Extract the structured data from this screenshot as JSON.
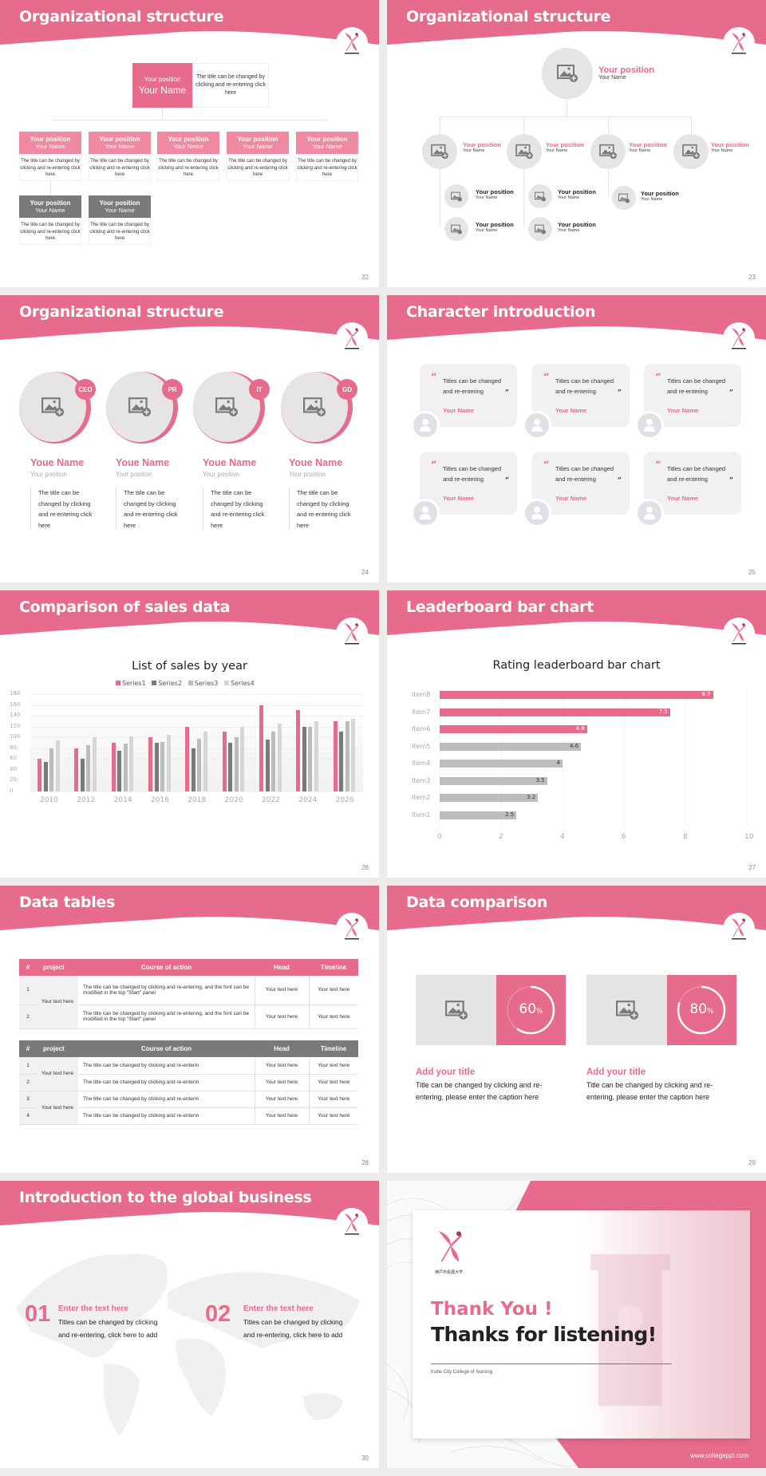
{
  "brand": {
    "accent": "#e76b8c",
    "gray_dark": "#7a7a7a",
    "gray_mid": "#bcbcbc",
    "gray_light": "#d6d6d6"
  },
  "slides": {
    "s22": {
      "title": "Organizational structure",
      "page": "22",
      "top": {
        "position": "Your position",
        "name": "Your Name",
        "desc": "The title can be changed by clicking and re-entering click here"
      },
      "cards": [
        {
          "position": "Your position",
          "name": "Your Name",
          "desc": "The title can be changed by clicking and re-entering click here",
          "color": "pink"
        },
        {
          "position": "Your position",
          "name": "Your Name",
          "desc": "The title can be changed by clicking and re-entering click here",
          "color": "pink"
        },
        {
          "position": "Your position",
          "name": "Your Name",
          "desc": "The title can be changed by clicking and re-entering click here",
          "color": "pink"
        },
        {
          "position": "Your position",
          "name": "Your Name",
          "desc": "The title can be changed by clicking and re-entering click here",
          "color": "pink"
        },
        {
          "position": "Your position",
          "name": "Your Name",
          "desc": "The title can be changed by clicking and re-entering click here",
          "color": "pink"
        },
        {
          "position": "Your position",
          "name": "Your Name",
          "desc": "The title can be changed by clicking and re-entering click here",
          "color": "gray"
        },
        {
          "position": "Your position",
          "name": "Your Name",
          "desc": "The title can be changed by clicking and re-entering click here",
          "color": "gray"
        }
      ]
    },
    "s23": {
      "title": "Organizational structure",
      "page": "23",
      "top": {
        "position": "Your position",
        "name": "Your Name"
      },
      "level2": [
        {
          "position": "Your position",
          "name": "Your Name"
        },
        {
          "position": "Your position",
          "name": "Your Name"
        },
        {
          "position": "Your position",
          "name": "Your Name"
        },
        {
          "position": "Your position",
          "name": "Your Name"
        }
      ],
      "level3": [
        {
          "position": "Your position",
          "name": "Your Name"
        },
        {
          "position": "Your position",
          "name": "Your Name"
        },
        {
          "position": "Your position",
          "name": "Your Name"
        },
        {
          "position": "Your position",
          "name": "Your Name"
        },
        {
          "position": "Your position",
          "name": "Your Name"
        }
      ]
    },
    "s24": {
      "title": "Organizational structure",
      "page": "24",
      "people": [
        {
          "badge": "CEO",
          "name": "Youe Name",
          "position": "Your position",
          "desc": "The title can be changed by clicking and re-entering click here"
        },
        {
          "badge": "PR",
          "name": "Youe Name",
          "position": "Your position",
          "desc": "The title can be changed by clicking and re-entering click here"
        },
        {
          "badge": "IT",
          "name": "Youe Name",
          "position": "Your position",
          "desc": "The title can be changed by clicking and re-entering click here"
        },
        {
          "badge": "GD",
          "name": "Youe Name",
          "position": "Your position",
          "desc": "The title can be changed by clicking and re-entering click here"
        }
      ]
    },
    "s25": {
      "title": "Character introduction",
      "page": "25",
      "quotes": [
        {
          "text": "Titles can be changed and re-entering",
          "name": "Your Name"
        },
        {
          "text": "Titles can be changed and re-entering",
          "name": "Your Name"
        },
        {
          "text": "Titles can be changed and re-entering",
          "name": "Your Name"
        },
        {
          "text": "Titles can be changed and re-entering",
          "name": "Your Name"
        },
        {
          "text": "Titles can be changed and re-entering",
          "name": "Your Name"
        },
        {
          "text": "Titles can be changed and re-entering",
          "name": "Your Name"
        }
      ],
      "open_quote": "“",
      "close_quote": "”"
    },
    "s26": {
      "title": "Comparison of sales data",
      "page": "26"
    },
    "s27": {
      "title": "Leaderboard bar chart",
      "page": "27"
    },
    "s28": {
      "title": "Data tables",
      "page": "28",
      "headers": [
        "#",
        "project",
        "Course of action",
        "Head",
        "Timeline"
      ],
      "table1": {
        "project": "Your text here",
        "rows": [
          {
            "num": "1",
            "action": "The title can be changed by clicking and re-entering, and the font can be modified in the top \"Start\" panel",
            "head": "Your text here",
            "timeline": "Your text here"
          },
          {
            "num": "2",
            "action": "The title can be changed by clicking and re-entering, and the font can be modified in the top \"Start\" panel",
            "head": "Your text here",
            "timeline": "Your text here"
          }
        ]
      },
      "table2": {
        "projects": [
          "Your text here",
          "Your text here"
        ],
        "rows": [
          {
            "num": "1",
            "action": "The title can be changed by clicking and re-enterin",
            "head": "Your text here",
            "timeline": "Your text here"
          },
          {
            "num": "2",
            "action": "The title can be changed by clicking and re-enterin",
            "head": "Your text here",
            "timeline": "Your text here"
          },
          {
            "num": "3",
            "action": "The title can be changed by clicking and re-enterin",
            "head": "Your text here",
            "timeline": "Your text here"
          },
          {
            "num": "4",
            "action": "The title can be changed by clicking and re-enterin",
            "head": "Your text here",
            "timeline": "Your text here"
          }
        ]
      }
    },
    "s29": {
      "title": "Data comparison",
      "page": "29",
      "items": [
        {
          "value": "60",
          "unit": "%",
          "percent": 60,
          "title": "Add your title",
          "caption": "Title can be changed by clicking and re-entering, please enter the caption here"
        },
        {
          "value": "80",
          "unit": "%",
          "percent": 80,
          "title": "Add your title",
          "caption": "Title can be changed by clicking and re-entering, please enter the caption here"
        }
      ]
    },
    "s30": {
      "title": "Introduction to the global business",
      "page": "30",
      "items": [
        {
          "num": "01",
          "heading": "Enter the text here",
          "desc": "Titles can be changed by clicking and re-entering, click here to add"
        },
        {
          "num": "02",
          "heading": "Enter the text here",
          "desc": "Titles can be changed by clicking and re-entering, click here to add"
        }
      ]
    },
    "s31": {
      "thank": "Thank You !",
      "thanks": "Thanks for listening!",
      "school": "Kobe City College of Nursing",
      "logo_text": "神戸市看護大学",
      "url": "www.collegeppt.com"
    }
  },
  "chart_data": [
    {
      "type": "bar",
      "title": "List of sales by year",
      "categories": [
        "2010",
        "2012",
        "2014",
        "2016",
        "2018",
        "2020",
        "2022",
        "2024",
        "2026"
      ],
      "series": [
        {
          "name": "Series1",
          "color": "#e76b8c",
          "values": [
            60,
            80,
            90,
            100,
            120,
            110,
            160,
            150,
            130
          ]
        },
        {
          "name": "Series2",
          "color": "#7a7a7a",
          "values": [
            55,
            60,
            75,
            90,
            80,
            90,
            96,
            120,
            110
          ]
        },
        {
          "name": "Series3",
          "color": "#bcbcbc",
          "values": [
            80,
            86,
            88,
            92,
            98,
            100,
            110,
            120,
            130
          ]
        },
        {
          "name": "Series4",
          "color": "#d6d6d6",
          "values": [
            95,
            100,
            102,
            105,
            110,
            120,
            126,
            130,
            135
          ]
        }
      ],
      "yticks": [
        "0",
        "20",
        "40",
        "60",
        "80",
        "100",
        "120",
        "140",
        "160",
        "180"
      ],
      "ylim": [
        0,
        180
      ],
      "xlabel": "",
      "ylabel": "",
      "legend_position": "top",
      "grid": true
    },
    {
      "type": "bar",
      "orientation": "horizontal",
      "title": "Rating leaderboard bar chart",
      "categories": [
        "Item8",
        "Item7",
        "Item6",
        "Item5",
        "Item4",
        "Item3",
        "Item2",
        "Item1"
      ],
      "values": [
        8.9,
        7.5,
        4.8,
        4.6,
        4,
        3.5,
        3.2,
        2.5
      ],
      "labels": [
        "8.9",
        "7.5",
        "4.8",
        "4.6",
        "4",
        "3.5",
        "3.2",
        "2.5"
      ],
      "highlight": [
        true,
        true,
        true,
        false,
        false,
        false,
        false,
        false
      ],
      "xticks": [
        "0",
        "2",
        "4",
        "6",
        "8",
        "10"
      ],
      "xlim": [
        0,
        10
      ],
      "xlabel": "",
      "ylabel": "",
      "grid": true
    }
  ]
}
